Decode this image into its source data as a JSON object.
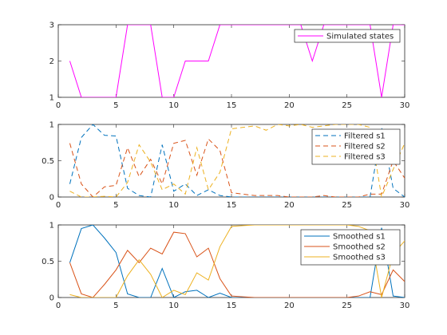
{
  "chart_data": [
    {
      "type": "line",
      "xlim": [
        0,
        30
      ],
      "ylim": [
        1,
        3
      ],
      "xticks": [
        0,
        5,
        10,
        15,
        20,
        25,
        30
      ],
      "yticks": [
        1,
        2,
        3
      ],
      "xtick_labels": [
        "0",
        "5",
        "10",
        "15",
        "20",
        "25",
        "30"
      ],
      "ytick_labels": [
        "1",
        "2",
        "3"
      ],
      "legend": "top-right",
      "grid": false,
      "x": [
        1,
        2,
        3,
        4,
        5,
        6,
        7,
        8,
        9,
        10,
        11,
        12,
        13,
        14,
        15,
        16,
        17,
        18,
        19,
        20,
        21,
        22,
        23,
        24,
        25,
        26,
        27,
        28,
        29,
        30
      ],
      "series": [
        {
          "name": "Simulated states",
          "color": "#ff00ff",
          "dash": "solid",
          "values": [
            2,
            1,
            1,
            1,
            1,
            3,
            3,
            3,
            1,
            1,
            2,
            2,
            2,
            3,
            3,
            3,
            3,
            3,
            3,
            3,
            3,
            2,
            3,
            3,
            3,
            3,
            3,
            1,
            3,
            3
          ]
        }
      ]
    },
    {
      "type": "line",
      "xlim": [
        0,
        30
      ],
      "ylim": [
        0,
        1
      ],
      "xticks": [
        0,
        5,
        10,
        15,
        20,
        25,
        30
      ],
      "yticks": [
        0,
        0.5,
        1
      ],
      "xtick_labels": [
        "0",
        "5",
        "10",
        "15",
        "20",
        "25",
        "30"
      ],
      "ytick_labels": [
        "0",
        "0.5",
        "1"
      ],
      "legend": "top-right",
      "grid": false,
      "x": [
        1,
        2,
        3,
        4,
        5,
        6,
        7,
        8,
        9,
        10,
        11,
        12,
        13,
        14,
        15,
        16,
        17,
        18,
        19,
        20,
        21,
        22,
        23,
        24,
        25,
        26,
        27,
        28,
        29,
        30
      ],
      "series": [
        {
          "name": "Filtered s1",
          "color": "#0072bd",
          "dash": "dashed",
          "values": [
            0.18,
            0.82,
            1.0,
            0.85,
            0.84,
            0.12,
            0.02,
            0.0,
            0.72,
            0.08,
            0.18,
            0.02,
            0.1,
            0.02,
            0.0,
            0.0,
            0.0,
            0.0,
            0.0,
            0.0,
            0.0,
            0.0,
            0.0,
            0.0,
            0.0,
            0.0,
            0.0,
            0.96,
            0.12,
            0.0
          ]
        },
        {
          "name": "Filtered s2",
          "color": "#d95319",
          "dash": "dashed",
          "values": [
            0.74,
            0.18,
            0.0,
            0.14,
            0.16,
            0.68,
            0.28,
            0.52,
            0.18,
            0.74,
            0.78,
            0.3,
            0.8,
            0.64,
            0.06,
            0.04,
            0.02,
            0.02,
            0.02,
            0.0,
            0.0,
            0.0,
            0.02,
            0.0,
            0.0,
            0.0,
            0.04,
            0.04,
            0.5,
            0.26
          ]
        },
        {
          "name": "Filtered s3",
          "color": "#edb120",
          "dash": "dashed",
          "values": [
            0.08,
            0.0,
            0.0,
            0.01,
            0.0,
            0.2,
            0.72,
            0.48,
            0.1,
            0.18,
            0.04,
            0.68,
            0.1,
            0.34,
            0.94,
            0.96,
            0.98,
            0.92,
            1.0,
            0.98,
            1.0,
            0.96,
            0.98,
            1.0,
            1.0,
            1.0,
            0.96,
            0.0,
            0.38,
            0.74
          ]
        }
      ]
    },
    {
      "type": "line",
      "xlim": [
        0,
        30
      ],
      "ylim": [
        0,
        1
      ],
      "xticks": [
        0,
        5,
        10,
        15,
        20,
        25,
        30
      ],
      "yticks": [
        0,
        0.5,
        1
      ],
      "xtick_labels": [
        "0",
        "5",
        "10",
        "15",
        "20",
        "25",
        "30"
      ],
      "ytick_labels": [
        "0",
        "0.5",
        "1"
      ],
      "legend": "top-right",
      "grid": false,
      "x": [
        1,
        2,
        3,
        4,
        5,
        6,
        7,
        8,
        9,
        10,
        11,
        12,
        13,
        14,
        15,
        16,
        17,
        18,
        19,
        20,
        21,
        22,
        23,
        24,
        25,
        26,
        27,
        28,
        29,
        30
      ],
      "series": [
        {
          "name": "Smoothed s1",
          "color": "#0072bd",
          "dash": "solid",
          "values": [
            0.48,
            0.95,
            1.0,
            0.82,
            0.62,
            0.05,
            0.0,
            0.0,
            0.4,
            0.0,
            0.08,
            0.1,
            0.0,
            0.06,
            0.0,
            0.0,
            0.0,
            0.0,
            0.0,
            0.0,
            0.0,
            0.0,
            0.0,
            0.0,
            0.0,
            0.0,
            0.0,
            0.96,
            0.02,
            0.0
          ]
        },
        {
          "name": "Smoothed s2",
          "color": "#d95319",
          "dash": "solid",
          "values": [
            0.48,
            0.05,
            0.0,
            0.18,
            0.38,
            0.65,
            0.48,
            0.68,
            0.6,
            0.9,
            0.88,
            0.56,
            0.68,
            0.26,
            0.02,
            0.01,
            0.0,
            0.0,
            0.0,
            0.0,
            0.0,
            0.0,
            0.0,
            0.0,
            0.0,
            0.02,
            0.08,
            0.04,
            0.38,
            0.22
          ]
        },
        {
          "name": "Smoothed s3",
          "color": "#edb120",
          "dash": "solid",
          "values": [
            0.04,
            0.0,
            0.0,
            0.0,
            0.0,
            0.3,
            0.52,
            0.32,
            0.0,
            0.1,
            0.04,
            0.34,
            0.24,
            0.7,
            0.98,
            0.99,
            1.0,
            1.0,
            1.0,
            1.0,
            1.0,
            1.0,
            1.0,
            1.0,
            1.0,
            0.98,
            0.92,
            0.0,
            0.6,
            0.78
          ]
        }
      ]
    }
  ]
}
